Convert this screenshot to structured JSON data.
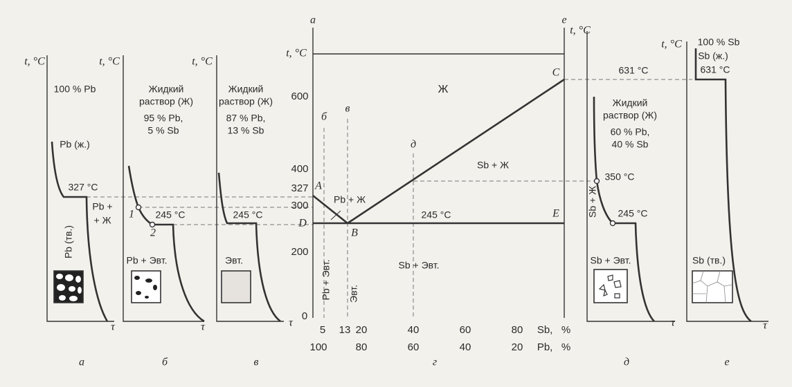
{
  "panels": [
    {
      "caption": "а",
      "y_label": "t, °C",
      "x_label": "τ",
      "texts": [
        "100 % Pb",
        "Pb (ж.)",
        "327 °C",
        "Pb +",
        "+ Ж",
        "Pb (тв.)"
      ]
    },
    {
      "caption": "б",
      "y_label": "t, °C",
      "x_label": "τ",
      "texts": [
        "Жидкий",
        "раствор (Ж)",
        "95 % Pb,",
        "5 % Sb",
        "1",
        "2",
        "245 °C",
        "Pb + Эвт."
      ]
    },
    {
      "caption": "в",
      "y_label": "t, °C",
      "x_label": "τ",
      "texts": [
        "Жидкий",
        "раствор (Ж)",
        "87 % Pb,",
        "13 % Sb",
        "245 °C",
        "Эвт."
      ]
    },
    {
      "caption": "д",
      "y_label": "t, °C",
      "x_label": "τ",
      "texts": [
        "631 °C",
        "Жидкий",
        "раствор (Ж)",
        "60 % Pb,",
        "40 % Sb",
        "350 °C",
        "Sb + Ж",
        "245 °C",
        "Sb + Эвт."
      ]
    },
    {
      "caption": "е",
      "y_label": "t, °C",
      "x_label": "τ",
      "texts": [
        "100 % Sb",
        "Sb (ж.)",
        "631 °C",
        "Sb (тв.)"
      ]
    }
  ],
  "diagram": {
    "caption": "г",
    "top_left": "а",
    "top_right": "е",
    "y_label": "t, °C",
    "y_ticks": [
      "600",
      "400",
      "327",
      "300",
      "200",
      "0"
    ],
    "x_ticks_sb": [
      "5",
      "13",
      "20",
      "40",
      "60",
      "80"
    ],
    "x_label_sb": "Sb,   %",
    "x_ticks_pb": [
      "100",
      "80",
      "60",
      "40",
      "20"
    ],
    "x_label_pb": "Pb,   %",
    "points": [
      "A",
      "B",
      "C",
      "D",
      "E"
    ],
    "regions": [
      "Ж",
      "Sb + Ж",
      "Pb + Ж",
      "Sb + Эвт.",
      "Pb + Эвт.",
      "Эвт."
    ],
    "eutectic": "245 °C",
    "verticals": [
      "б",
      "в",
      "д"
    ]
  }
}
